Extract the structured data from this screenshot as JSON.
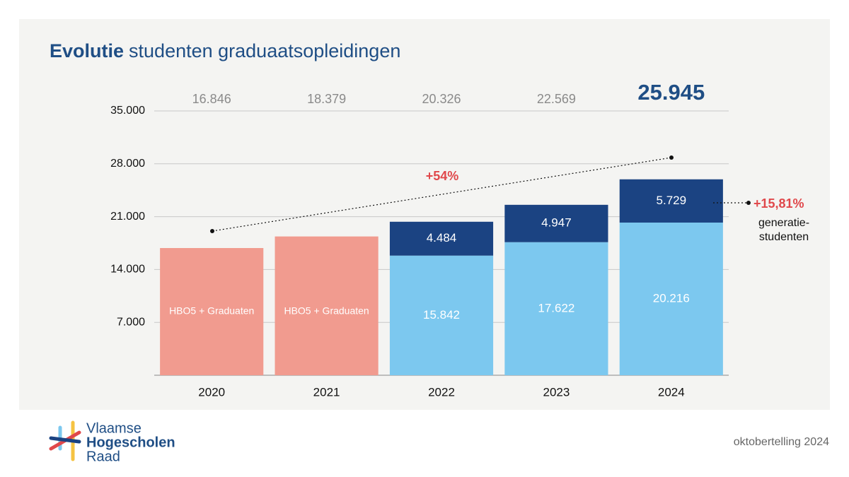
{
  "chart_data": {
    "type": "stacked_bar",
    "title": {
      "bold": "Evolutie",
      "rest": "studenten graduaatsopleidingen"
    },
    "categories": [
      "2020",
      "2021",
      "2022",
      "2023",
      "2024"
    ],
    "series": [
      {
        "name": "HBO5 + Graduaten",
        "color": "#f19b8f",
        "values": [
          16846,
          18379,
          null,
          null,
          null
        ]
      },
      {
        "color": "#7cc8ef",
        "values": [
          null,
          null,
          15842,
          17622,
          20216
        ],
        "value_labels": [
          null,
          null,
          "15.842",
          "17.622",
          "20.216"
        ]
      },
      {
        "name": "generatie-studenten",
        "color": "#1b4382",
        "values": [
          null,
          null,
          4484,
          4947,
          5729
        ],
        "value_labels": [
          null,
          null,
          "4.484",
          "4.947",
          "5.729"
        ]
      }
    ],
    "totals": {
      "values": [
        16846,
        18379,
        20326,
        22569,
        25945
      ],
      "value_labels": [
        "16.846",
        "18.379",
        "20.326",
        "22.569",
        "25.945"
      ]
    },
    "ylim": [
      0,
      35000
    ],
    "yticks": [
      {
        "value": 7000,
        "label": "7.000"
      },
      {
        "value": 14000,
        "label": "14.000"
      },
      {
        "value": 21000,
        "label": "21.000"
      },
      {
        "value": 28000,
        "label": "28.000"
      },
      {
        "value": 35000,
        "label": "35.000"
      }
    ],
    "grid": true,
    "annotations": {
      "growth": "+54%",
      "share": "+15,81%"
    }
  },
  "footer": {
    "logo": [
      "Vlaamse",
      "Hogescholen",
      "Raad"
    ],
    "note": "oktobertelling 2024"
  }
}
